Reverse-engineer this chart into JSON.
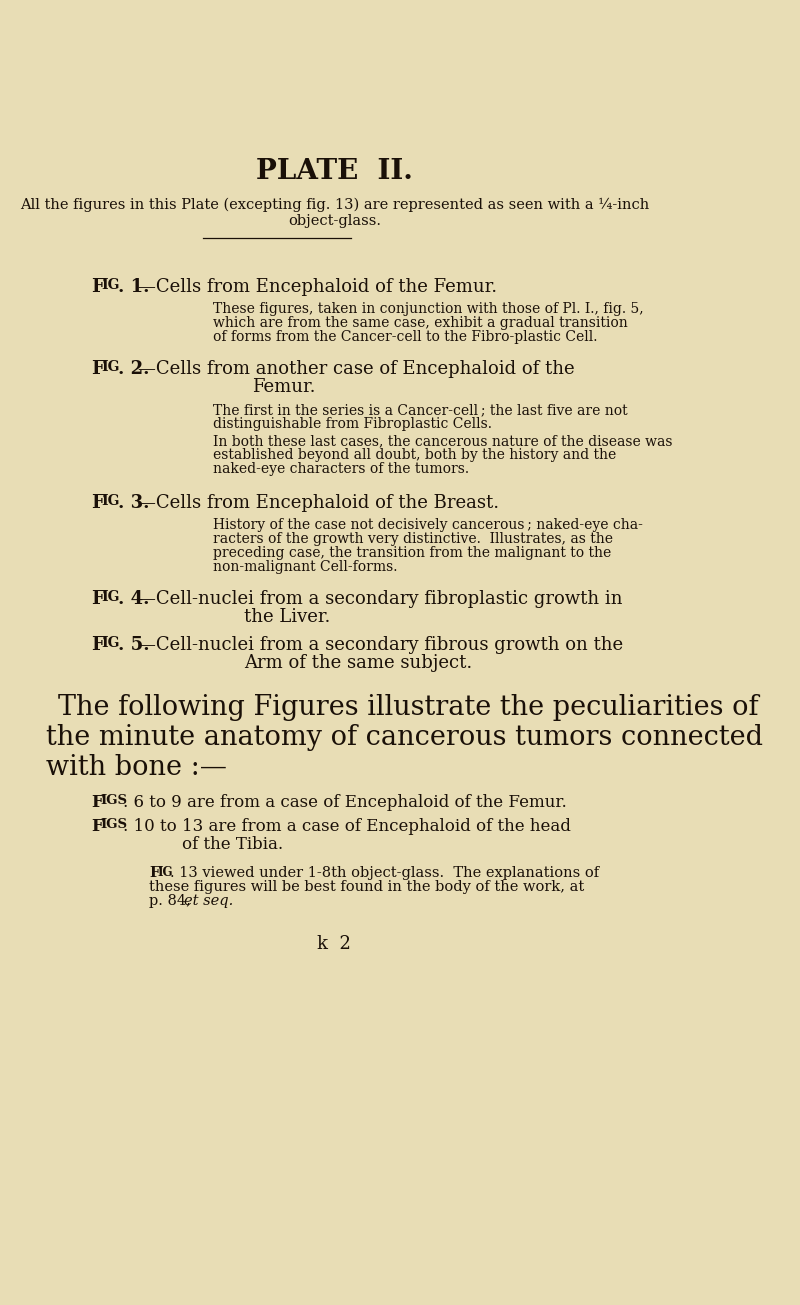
{
  "background_color": "#e8ddb5",
  "text_color": "#1a1008",
  "title": "PLATE  II.",
  "subtitle_line1": "All the figures in this Plate (excepting fig. 13) are represented as seen with a ¼-inch",
  "subtitle_line2": "object-glass.",
  "footer": "k  2"
}
